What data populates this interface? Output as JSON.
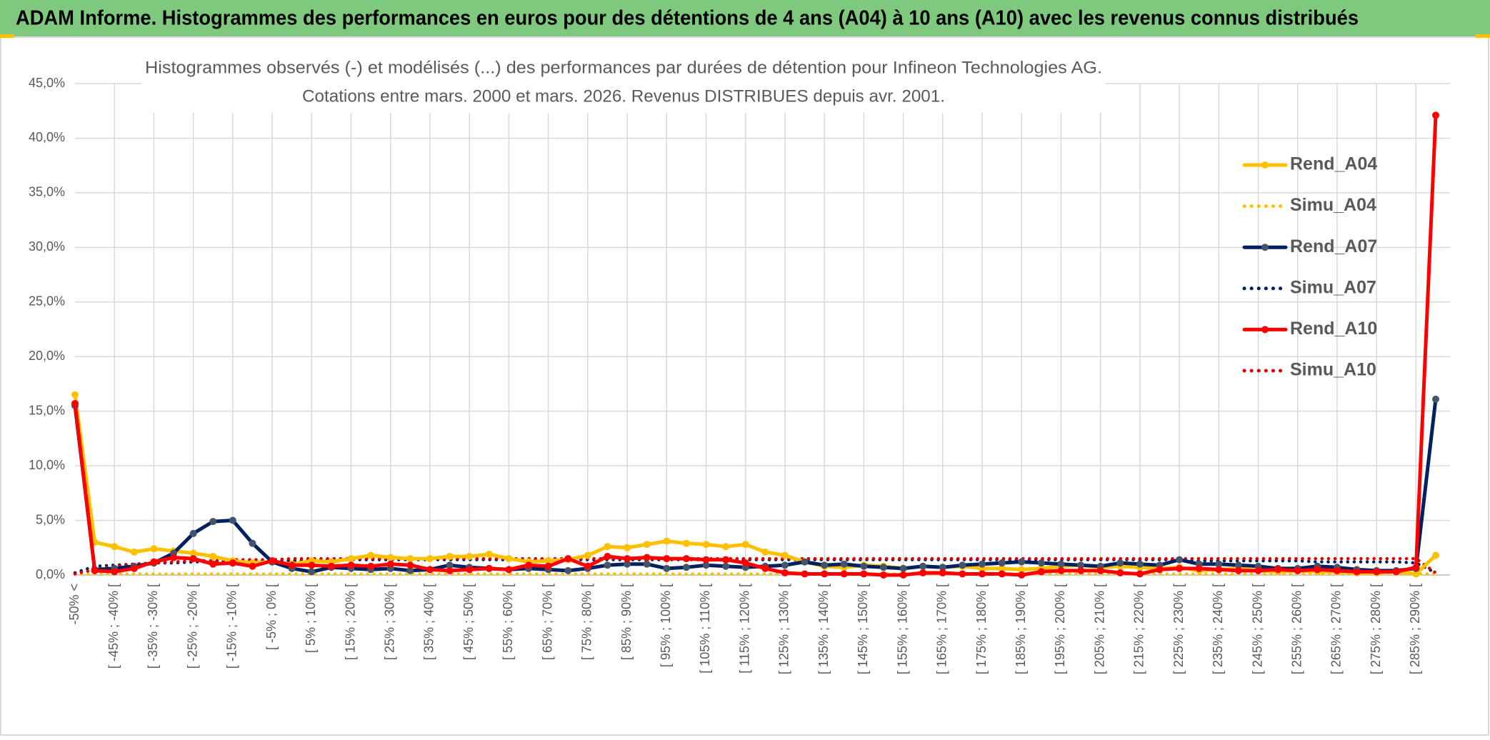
{
  "header": "ADAM Informe. Histogrammes des performances en euros pour des détentions de 4 ans (A04) à 10 ans (A10) avec les revenus connus distribués",
  "chart_data": {
    "type": "line",
    "title": "Histogrammes observés (-) et modélisés (...) des performances par durées de détention pour Infineon Technologies AG.",
    "subtitle": "Cotations entre mars. 2000 et mars. 2026. Revenus DISTRIBUES depuis avr. 2001.",
    "categories": [
      "-50% <",
      null,
      "[ -45% ; -40% [",
      null,
      "[ -35% ; -30% [",
      null,
      "[ -25% ; -20% [",
      null,
      "[ -15% ; -10% [",
      null,
      "[ -5% ; 0% [",
      null,
      "[ 5% ; 10% [",
      null,
      "[ 15% ; 20% [",
      null,
      "[ 25% ; 30% [",
      null,
      "[ 35% ; 40% [",
      null,
      "[ 45% ; 50% [",
      null,
      "[ 55% ; 60% [",
      null,
      "[ 65% ; 70% [",
      null,
      "[ 75% ; 80% [",
      null,
      "[ 85% ; 90% [",
      null,
      "[ 95% ; 100% [",
      null,
      "[ 105% ; 110% [",
      null,
      "[ 115% ; 120% [",
      null,
      "[ 125% ; 130% [",
      null,
      "[ 135% ; 140% [",
      null,
      "[ 145% ; 150% [",
      null,
      "[ 155% ; 160% [",
      null,
      "[ 165% ; 170% [",
      null,
      "[ 175% ; 180% [",
      null,
      "[ 185% ; 190% [",
      null,
      "[ 195% ; 200% [",
      null,
      "[ 205% ; 210% [",
      null,
      "[ 215% ; 220% [",
      null,
      "[ 225% ; 230% [",
      null,
      "[ 235% ; 240% [",
      null,
      "[ 245% ; 250% [",
      null,
      "[ 255% ; 260% [",
      null,
      "[ 265% ; 270% [",
      null,
      "[ 275% ; 280% [",
      null,
      "[ 285% ; 290% [",
      null
    ],
    "series": [
      {
        "name": "Simu_A04",
        "color": "#ffc000",
        "style": "dotted",
        "values": [
          0.1,
          0.1,
          0.1,
          0.1,
          0.1,
          0.1,
          0.1,
          0.1,
          0.1,
          0.1,
          0.1,
          0.1,
          0.1,
          0.1,
          0.1,
          0.1,
          0.1,
          0.1,
          0.1,
          0.1,
          0.1,
          0.1,
          0.1,
          0.1,
          0.1,
          0.1,
          0.1,
          0.1,
          0.1,
          0.1,
          0.1,
          0.1,
          0.1,
          0.1,
          0.1,
          0.1,
          0.1,
          0.1,
          0.1,
          0.1,
          0.1,
          0.1,
          0.1,
          0.1,
          0.1,
          0.1,
          0.1,
          0.1,
          0.1,
          0.1,
          0.1,
          0.1,
          0.1,
          0.1,
          0.1,
          0.1,
          0.1,
          0.1,
          0.1,
          0.1,
          0.1,
          0.1,
          0.1,
          0.1,
          0.1,
          0.1,
          0.1,
          0.1,
          0.1,
          0.1
        ]
      },
      {
        "name": "Simu_A07",
        "color": "#002060",
        "style": "dotted",
        "values": [
          0.2,
          0.8,
          0.9,
          1.0,
          1.1,
          1.1,
          1.2,
          1.2,
          1.3,
          1.3,
          1.3,
          1.3,
          1.4,
          1.4,
          1.4,
          1.4,
          1.4,
          1.4,
          1.4,
          1.4,
          1.4,
          1.4,
          1.4,
          1.4,
          1.4,
          1.4,
          1.4,
          1.4,
          1.4,
          1.4,
          1.4,
          1.4,
          1.4,
          1.4,
          1.4,
          1.4,
          1.4,
          1.4,
          1.4,
          1.4,
          1.4,
          1.4,
          1.4,
          1.4,
          1.4,
          1.4,
          1.4,
          1.4,
          1.4,
          1.4,
          1.4,
          1.4,
          1.4,
          1.4,
          1.4,
          1.4,
          1.4,
          1.3,
          1.3,
          1.3,
          1.3,
          1.3,
          1.3,
          1.2,
          1.2,
          1.2,
          1.2,
          1.2,
          1.1,
          0.2
        ]
      },
      {
        "name": "Simu_A10",
        "color": "#e00000",
        "style": "dotted",
        "values": [
          0.1,
          0.5,
          0.8,
          1.0,
          1.1,
          1.2,
          1.3,
          1.3,
          1.4,
          1.4,
          1.4,
          1.5,
          1.5,
          1.5,
          1.5,
          1.5,
          1.5,
          1.5,
          1.5,
          1.5,
          1.5,
          1.5,
          1.5,
          1.5,
          1.5,
          1.5,
          1.5,
          1.5,
          1.5,
          1.5,
          1.5,
          1.5,
          1.5,
          1.5,
          1.5,
          1.5,
          1.5,
          1.5,
          1.5,
          1.5,
          1.5,
          1.5,
          1.5,
          1.5,
          1.5,
          1.5,
          1.5,
          1.5,
          1.5,
          1.5,
          1.5,
          1.5,
          1.5,
          1.5,
          1.5,
          1.5,
          1.5,
          1.5,
          1.5,
          1.5,
          1.5,
          1.5,
          1.5,
          1.5,
          1.5,
          1.5,
          1.5,
          1.5,
          1.5,
          0.2
        ]
      },
      {
        "name": "Rend_A04",
        "color": "#ffc000",
        "style": "solid",
        "values": [
          16.5,
          3.0,
          2.6,
          2.1,
          2.4,
          2.2,
          2.0,
          1.7,
          1.3,
          1.1,
          1.2,
          1.0,
          1.3,
          1.2,
          1.5,
          1.8,
          1.6,
          1.5,
          1.5,
          1.7,
          1.7,
          1.9,
          1.5,
          1.2,
          1.3,
          1.4,
          1.8,
          2.6,
          2.5,
          2.8,
          3.1,
          2.9,
          2.8,
          2.6,
          2.8,
          2.1,
          1.8,
          1.2,
          0.8,
          0.7,
          0.9,
          0.8,
          0.6,
          0.8,
          0.7,
          0.8,
          0.6,
          0.6,
          0.5,
          0.6,
          0.8,
          0.9,
          0.7,
          0.8,
          0.7,
          0.6,
          0.7,
          0.4,
          0.5,
          0.6,
          0.4,
          0.3,
          0.4,
          0.3,
          0.3,
          0.2,
          0.2,
          0.3,
          0.1,
          1.8
        ]
      },
      {
        "name": "Rend_A07",
        "color": "#002060",
        "style": "solid",
        "values": [
          15.5,
          0.5,
          0.6,
          0.8,
          1.1,
          2.0,
          3.8,
          4.9,
          5.0,
          2.9,
          1.2,
          0.6,
          0.3,
          0.7,
          0.6,
          0.5,
          0.6,
          0.4,
          0.5,
          0.9,
          0.7,
          0.6,
          0.5,
          0.6,
          0.5,
          0.4,
          0.6,
          0.9,
          1.0,
          1.0,
          0.6,
          0.7,
          0.9,
          0.8,
          0.7,
          0.8,
          0.9,
          1.2,
          0.9,
          1.0,
          0.8,
          0.7,
          0.6,
          0.8,
          0.7,
          0.9,
          1.0,
          1.1,
          1.2,
          1.1,
          1.0,
          0.9,
          0.8,
          1.1,
          1.0,
          0.9,
          1.4,
          1.0,
          1.0,
          0.9,
          0.8,
          0.6,
          0.6,
          0.8,
          0.7,
          0.5,
          0.4,
          0.4,
          0.6,
          16.1
        ]
      },
      {
        "name": "Rend_A10",
        "color": "#ff0000",
        "style": "solid",
        "values": [
          15.7,
          0.4,
          0.3,
          0.6,
          1.2,
          1.6,
          1.5,
          1.0,
          1.1,
          0.8,
          1.3,
          0.9,
          0.9,
          0.8,
          0.9,
          0.8,
          1.0,
          0.9,
          0.5,
          0.4,
          0.5,
          0.6,
          0.5,
          0.9,
          0.8,
          1.5,
          0.8,
          1.7,
          1.5,
          1.6,
          1.5,
          1.5,
          1.4,
          1.4,
          1.1,
          0.6,
          0.2,
          0.1,
          0.1,
          0.1,
          0.1,
          0.0,
          0.0,
          0.2,
          0.2,
          0.1,
          0.1,
          0.1,
          0.0,
          0.3,
          0.4,
          0.4,
          0.4,
          0.2,
          0.1,
          0.5,
          0.6,
          0.6,
          0.5,
          0.4,
          0.4,
          0.5,
          0.4,
          0.5,
          0.4,
          0.3,
          0.3,
          0.3,
          0.7,
          42.1
        ]
      }
    ],
    "legend_order": [
      3,
      0,
      4,
      1,
      5,
      2
    ],
    "legend": "right",
    "ylim": [
      0,
      45
    ],
    "yticks": [
      {
        "value": 0,
        "label": "0,0%"
      },
      {
        "value": 5,
        "label": "5,0%"
      },
      {
        "value": 10,
        "label": "10,0%"
      },
      {
        "value": 15,
        "label": "15,0%"
      },
      {
        "value": 20,
        "label": "20,0%"
      },
      {
        "value": 25,
        "label": "25,0%"
      },
      {
        "value": 30,
        "label": "30,0%"
      },
      {
        "value": 35,
        "label": "35,0%"
      },
      {
        "value": 40,
        "label": "40,0%"
      },
      {
        "value": 45,
        "label": "45,0%"
      }
    ],
    "grid": true
  }
}
